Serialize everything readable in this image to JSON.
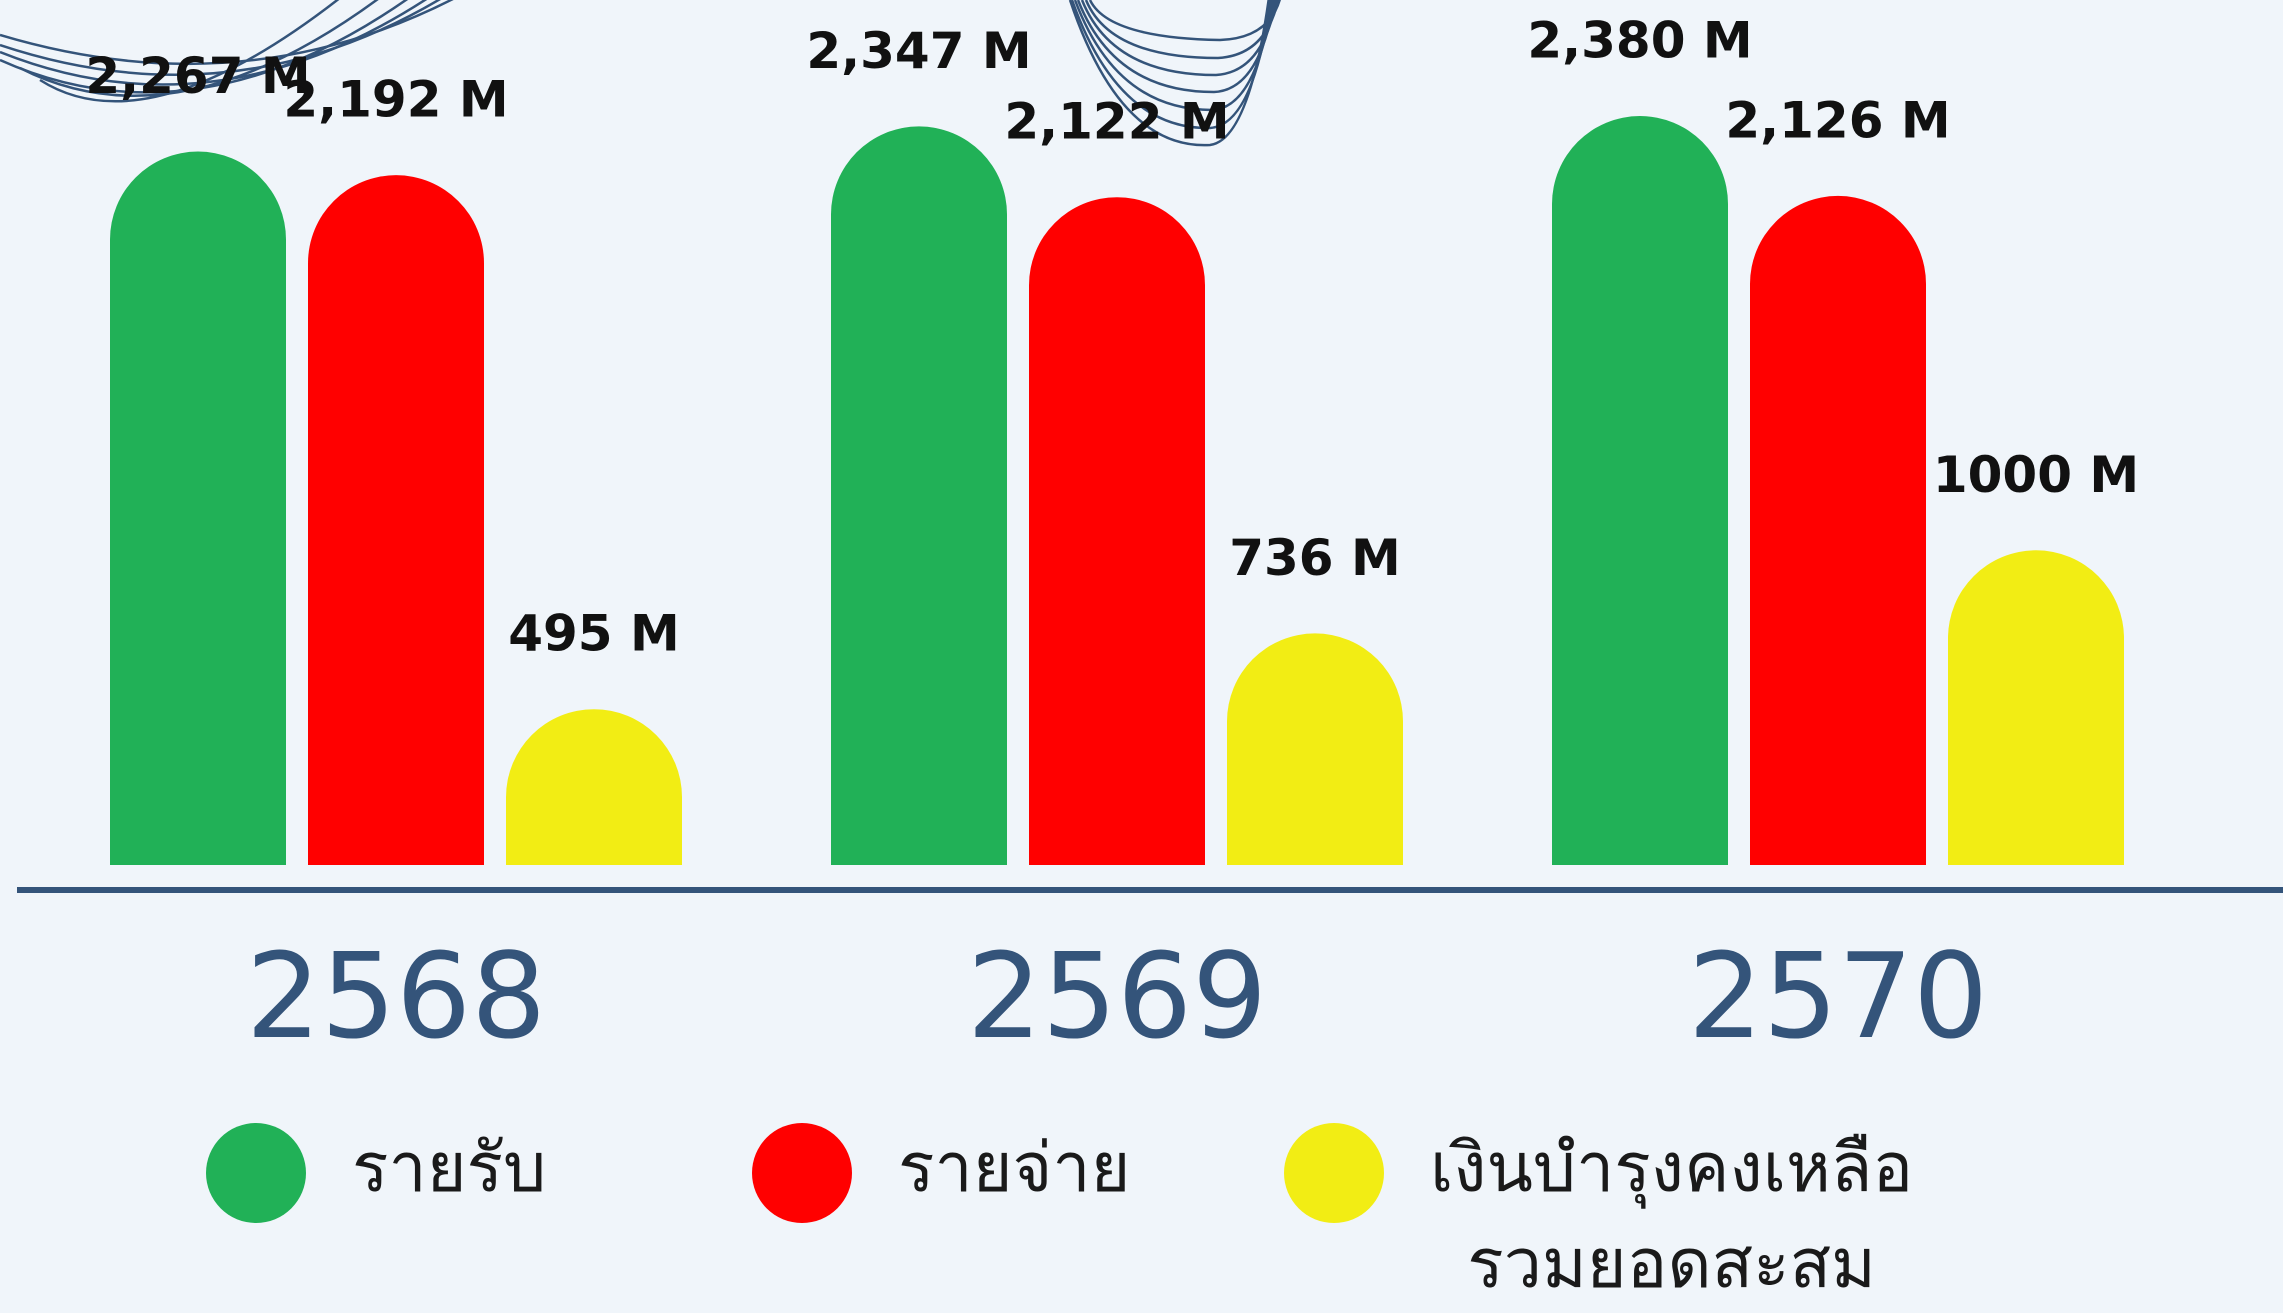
{
  "chart_data": {
    "type": "bar",
    "categories": [
      "2568",
      "2569",
      "2570"
    ],
    "series": [
      {
        "name": "รายรับ",
        "color": "#21b157",
        "values": [
          2267,
          2347,
          2380
        ],
        "value_labels": [
          "2,267 M",
          "2,347 M",
          "2,380 M"
        ]
      },
      {
        "name": "รายจ่าย",
        "color": "#ff0000",
        "values": [
          2192,
          2122,
          2126
        ],
        "value_labels": [
          "2,192 M",
          "2,122 M",
          "2,126 M"
        ]
      },
      {
        "name": "เงินบำรุงคงเหลือ\nรวมยอดสะสม",
        "color": "#f2ed14",
        "values": [
          495,
          736,
          1000
        ],
        "value_labels": [
          "495 M",
          "736 M",
          "1000 M"
        ]
      }
    ]
  }
}
